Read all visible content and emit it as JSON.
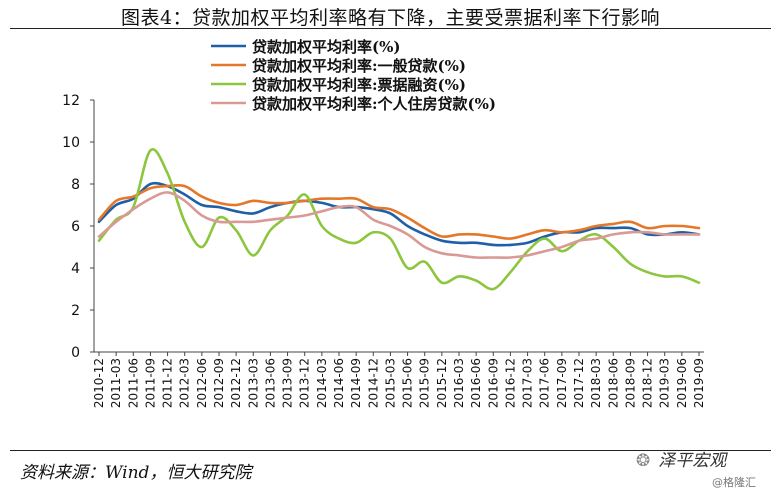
{
  "header": {
    "title": "图表4：贷款加权平均利率略有下降，主要受票据利率下行影响"
  },
  "footer": {
    "source": "资料来源：Wind，恒大研究院",
    "brand": "泽平宏观",
    "watermark": "@格隆汇"
  },
  "chart_data": {
    "type": "line",
    "title": "",
    "xlabel": "",
    "ylabel": "",
    "ylim": [
      0,
      12
    ],
    "yticks": [
      0,
      2,
      4,
      6,
      8,
      10,
      12
    ],
    "grid": false,
    "legend_position": "top-left",
    "x": [
      "2010-12",
      "2011-03",
      "2011-06",
      "2011-09",
      "2011-12",
      "2012-03",
      "2012-06",
      "2012-09",
      "2012-12",
      "2013-03",
      "2013-06",
      "2013-09",
      "2013-12",
      "2014-03",
      "2014-06",
      "2014-09",
      "2014-12",
      "2015-03",
      "2015-06",
      "2015-09",
      "2015-12",
      "2016-03",
      "2016-06",
      "2016-09",
      "2016-12",
      "2017-03",
      "2017-06",
      "2017-09",
      "2017-12",
      "2018-03",
      "2018-06",
      "2018-09",
      "2018-12",
      "2019-03",
      "2019-06",
      "2019-09"
    ],
    "series": [
      {
        "name": "贷款加权平均利率(%)",
        "color": "#1F5FA8",
        "values": [
          6.2,
          7.0,
          7.3,
          8.0,
          7.9,
          7.5,
          7.0,
          6.9,
          6.7,
          6.6,
          6.9,
          7.1,
          7.2,
          7.1,
          6.9,
          6.9,
          6.8,
          6.6,
          6.0,
          5.6,
          5.3,
          5.2,
          5.2,
          5.1,
          5.1,
          5.2,
          5.5,
          5.7,
          5.7,
          5.9,
          5.9,
          5.9,
          5.6,
          5.6,
          5.7,
          5.6
        ]
      },
      {
        "name": "贷款加权平均利率:一般贷款(%)",
        "color": "#E4782A",
        "values": [
          6.3,
          7.2,
          7.4,
          7.8,
          7.9,
          7.9,
          7.4,
          7.1,
          7.0,
          7.2,
          7.1,
          7.1,
          7.2,
          7.3,
          7.3,
          7.3,
          6.9,
          6.8,
          6.4,
          5.9,
          5.5,
          5.6,
          5.6,
          5.5,
          5.4,
          5.6,
          5.8,
          5.7,
          5.8,
          6.0,
          6.1,
          6.2,
          5.9,
          6.0,
          6.0,
          5.9
        ]
      },
      {
        "name": "贷款加权平均利率:票据融资(%)",
        "color": "#8CC63F",
        "values": [
          5.3,
          6.3,
          6.9,
          9.6,
          8.5,
          6.2,
          5.0,
          6.4,
          5.8,
          4.6,
          5.8,
          6.5,
          7.5,
          6.0,
          5.4,
          5.2,
          5.7,
          5.4,
          4.0,
          4.3,
          3.3,
          3.6,
          3.4,
          3.0,
          3.8,
          4.8,
          5.4,
          4.8,
          5.3,
          5.6,
          5.0,
          4.2,
          3.8,
          3.6,
          3.6,
          3.3
        ]
      },
      {
        "name": "贷款加权平均利率:个人住房贷款(%)",
        "color": "#D99A96",
        "values": [
          5.5,
          6.2,
          6.8,
          7.3,
          7.6,
          7.2,
          6.5,
          6.2,
          6.2,
          6.2,
          6.3,
          6.4,
          6.5,
          6.7,
          6.9,
          6.9,
          6.3,
          6.0,
          5.6,
          5.0,
          4.7,
          4.6,
          4.5,
          4.5,
          4.5,
          4.6,
          4.8,
          5.0,
          5.3,
          5.4,
          5.6,
          5.7,
          5.7,
          5.6,
          5.6,
          5.6
        ]
      }
    ]
  }
}
